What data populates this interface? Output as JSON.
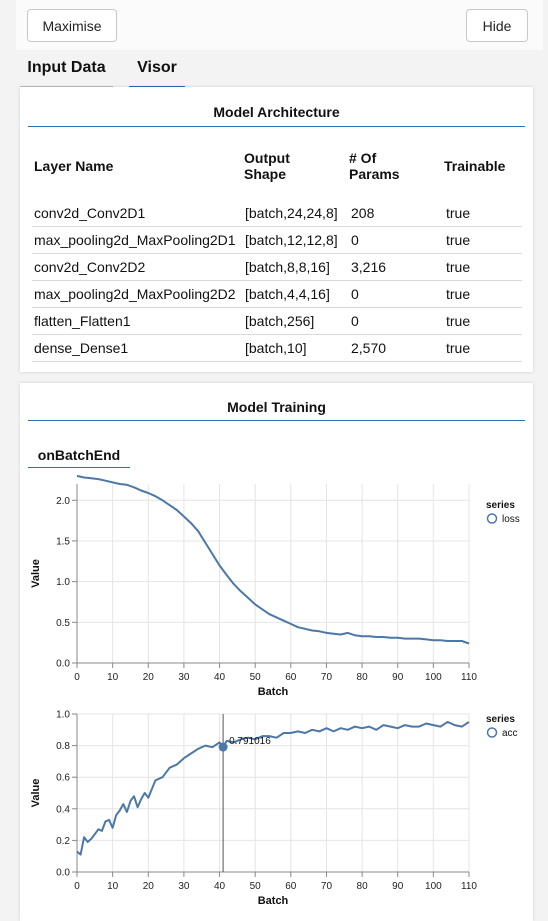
{
  "toolbar": {
    "maximise_label": "Maximise",
    "hide_label": "Hide"
  },
  "tabs": [
    {
      "label": "Input Data"
    },
    {
      "label": "Visor"
    }
  ],
  "architecture": {
    "title": "Model Architecture",
    "headers": {
      "layer_name": "Layer Name",
      "output_shape_1": "Output",
      "output_shape_2": "Shape",
      "params_1": "# Of",
      "params_2": "Params",
      "trainable": "Trainable"
    },
    "rows": [
      {
        "name": "conv2d_Conv2D1",
        "shape": "[batch,24,24,8]",
        "params": "208",
        "trainable": "true"
      },
      {
        "name": "max_pooling2d_MaxPooling2D1",
        "shape": "[batch,12,12,8]",
        "params": "0",
        "trainable": "true"
      },
      {
        "name": "conv2d_Conv2D2",
        "shape": "[batch,8,8,16]",
        "params": "3,216",
        "trainable": "true"
      },
      {
        "name": "max_pooling2d_MaxPooling2D2",
        "shape": "[batch,4,4,16]",
        "params": "0",
        "trainable": "true"
      },
      {
        "name": "flatten_Flatten1",
        "shape": "[batch,256]",
        "params": "0",
        "trainable": "true"
      },
      {
        "name": "dense_Dense1",
        "shape": "[batch,10]",
        "params": "2,570",
        "trainable": "true"
      }
    ]
  },
  "training": {
    "title": "Model Training",
    "subtab": "onBatchEnd",
    "tooltip_value": "0.791016"
  },
  "colors": {
    "accent": "#2a6ebd",
    "series": "#4c78a8"
  },
  "chart_data": [
    {
      "type": "line",
      "xlabel": "Batch",
      "ylabel": "Value",
      "xlim": [
        0,
        110
      ],
      "ylim": [
        0,
        2.2
      ],
      "xticks": [
        "0",
        "10",
        "20",
        "30",
        "40",
        "50",
        "60",
        "70",
        "80",
        "90",
        "100",
        "110"
      ],
      "yticks": [
        "0.0",
        "0.5",
        "1.0",
        "1.5",
        "2.0"
      ],
      "grid": true,
      "legend_title": "series",
      "legend_position": "top-right",
      "series": [
        {
          "name": "loss",
          "x": [
            0,
            2,
            4,
            6,
            8,
            10,
            12,
            14,
            16,
            18,
            20,
            22,
            24,
            26,
            28,
            30,
            32,
            34,
            36,
            38,
            40,
            42,
            44,
            46,
            48,
            50,
            52,
            54,
            56,
            58,
            60,
            62,
            64,
            66,
            68,
            70,
            72,
            74,
            76,
            78,
            80,
            82,
            84,
            86,
            88,
            90,
            92,
            94,
            96,
            98,
            100,
            102,
            104,
            106,
            108,
            110
          ],
          "values": [
            2.3,
            2.28,
            2.27,
            2.26,
            2.24,
            2.22,
            2.2,
            2.19,
            2.16,
            2.12,
            2.09,
            2.05,
            2.0,
            1.94,
            1.88,
            1.8,
            1.72,
            1.62,
            1.48,
            1.34,
            1.2,
            1.08,
            0.97,
            0.88,
            0.8,
            0.72,
            0.66,
            0.6,
            0.56,
            0.52,
            0.48,
            0.44,
            0.42,
            0.4,
            0.39,
            0.37,
            0.36,
            0.35,
            0.37,
            0.34,
            0.33,
            0.33,
            0.32,
            0.32,
            0.31,
            0.31,
            0.3,
            0.3,
            0.3,
            0.29,
            0.28,
            0.28,
            0.27,
            0.27,
            0.27,
            0.24
          ]
        }
      ]
    },
    {
      "type": "line",
      "xlabel": "Batch",
      "ylabel": "Value",
      "xlim": [
        0,
        110
      ],
      "ylim": [
        0,
        1.0
      ],
      "xticks": [
        "0",
        "10",
        "20",
        "30",
        "40",
        "50",
        "60",
        "70",
        "80",
        "90",
        "100",
        "110"
      ],
      "yticks": [
        "0.0",
        "0.2",
        "0.4",
        "0.6",
        "0.8",
        "1.0"
      ],
      "grid": true,
      "legend_title": "series",
      "legend_position": "top-right",
      "highlight_x": 41,
      "highlight_value": 0.791016,
      "series": [
        {
          "name": "acc",
          "x": [
            0,
            1,
            2,
            3,
            4,
            5,
            6,
            7,
            8,
            9,
            10,
            11,
            12,
            13,
            14,
            15,
            16,
            17,
            18,
            19,
            20,
            22,
            24,
            26,
            28,
            30,
            32,
            34,
            36,
            38,
            40,
            41,
            42,
            44,
            46,
            48,
            50,
            52,
            54,
            56,
            58,
            60,
            62,
            64,
            66,
            68,
            70,
            72,
            74,
            76,
            78,
            80,
            82,
            84,
            86,
            88,
            90,
            92,
            94,
            96,
            98,
            100,
            102,
            104,
            106,
            108,
            110
          ],
          "values": [
            0.13,
            0.11,
            0.22,
            0.19,
            0.21,
            0.24,
            0.27,
            0.26,
            0.32,
            0.33,
            0.28,
            0.36,
            0.39,
            0.43,
            0.38,
            0.45,
            0.48,
            0.41,
            0.46,
            0.5,
            0.47,
            0.58,
            0.6,
            0.66,
            0.68,
            0.72,
            0.75,
            0.78,
            0.8,
            0.79,
            0.82,
            0.791016,
            0.83,
            0.82,
            0.84,
            0.85,
            0.84,
            0.86,
            0.86,
            0.85,
            0.88,
            0.88,
            0.89,
            0.88,
            0.9,
            0.89,
            0.91,
            0.89,
            0.91,
            0.9,
            0.92,
            0.91,
            0.92,
            0.9,
            0.93,
            0.92,
            0.91,
            0.93,
            0.92,
            0.92,
            0.94,
            0.93,
            0.92,
            0.95,
            0.93,
            0.92,
            0.95
          ]
        }
      ]
    }
  ]
}
